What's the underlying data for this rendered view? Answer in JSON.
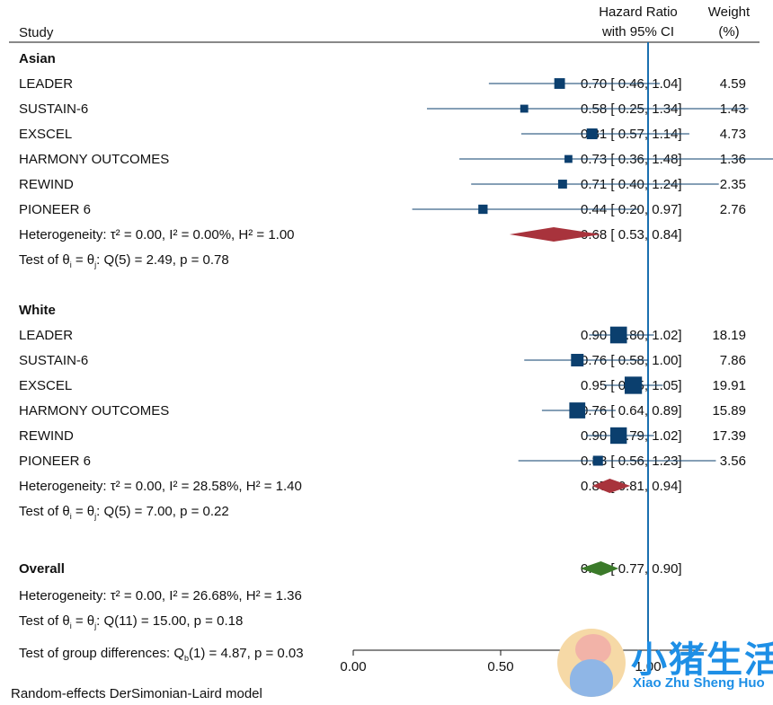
{
  "header": {
    "study": "Study",
    "hr_line1": "Hazard Ratio",
    "hr_line2": "with 95% CI",
    "weight_line1": "Weight",
    "weight_line2": "(%)"
  },
  "footer": {
    "model": "Random-effects DerSimonian-Laird model"
  },
  "watermark": {
    "title": "小猪生活",
    "subtitle": "Xiao Zhu Sheng Huo"
  },
  "colors": {
    "study_marker": "#0b3f6e",
    "subgroup_diamond": "#a8333c",
    "overall_diamond": "#3b7a2a",
    "null_line": "#1a6fb0"
  },
  "chart_data": {
    "type": "forest",
    "xlim": [
      0,
      1.2
    ],
    "xticks": [
      "0.00",
      "0.50",
      "1.00",
      "1"
    ],
    "null_value": 1.0,
    "groups": [
      {
        "name": "Asian",
        "studies": [
          {
            "name": "LEADER",
            "hr": 0.7,
            "lo": 0.46,
            "hi": 1.04,
            "ci_text": "0.70 [ 0.46,  1.04]",
            "weight": "4.59"
          },
          {
            "name": "SUSTAIN-6",
            "hr": 0.58,
            "lo": 0.25,
            "hi": 1.34,
            "ci_text": "0.58 [ 0.25,  1.34]",
            "weight": "1.43"
          },
          {
            "name": "EXSCEL",
            "hr": 0.81,
            "lo": 0.57,
            "hi": 1.14,
            "ci_text": "0.81 [ 0.57,  1.14]",
            "weight": "4.73"
          },
          {
            "name": "HARMONY OUTCOMES",
            "hr": 0.73,
            "lo": 0.36,
            "hi": 1.48,
            "ci_text": "0.73 [ 0.36,  1.48]",
            "weight": "1.36"
          },
          {
            "name": "REWIND",
            "hr": 0.71,
            "lo": 0.4,
            "hi": 1.24,
            "ci_text": "0.71 [ 0.40,  1.24]",
            "weight": "2.35"
          },
          {
            "name": "PIONEER 6",
            "hr": 0.44,
            "lo": 0.2,
            "hi": 0.97,
            "ci_text": "0.44 [ 0.20,  0.97]",
            "weight": "2.76"
          }
        ],
        "pooled": {
          "hr": 0.68,
          "lo": 0.53,
          "hi": 0.84,
          "ci_text": "0.68 [ 0.53,  0.84]"
        },
        "heterogeneity": "Heterogeneity: τ² = 0.00, I² = 0.00%, H² = 1.00",
        "test_prefix": "Test of θ",
        "test_sub1": "i",
        "test_mid": " = θ",
        "test_sub2": "j",
        "test_suffix": ": Q(5) = 2.49, p = 0.78"
      },
      {
        "name": "White",
        "studies": [
          {
            "name": "LEADER",
            "hr": 0.9,
            "lo": 0.8,
            "hi": 1.02,
            "ci_text": "0.90 [ 0.80,  1.02]",
            "weight": "18.19"
          },
          {
            "name": "SUSTAIN-6",
            "hr": 0.76,
            "lo": 0.58,
            "hi": 1.0,
            "ci_text": "0.76 [ 0.58,  1.00]",
            "weight": "7.86"
          },
          {
            "name": "EXSCEL",
            "hr": 0.95,
            "lo": 0.85,
            "hi": 1.05,
            "ci_text": "0.95 [ 0.85,  1.05]",
            "weight": "19.91"
          },
          {
            "name": "HARMONY OUTCOMES",
            "hr": 0.76,
            "lo": 0.64,
            "hi": 0.89,
            "ci_text": "0.76 [ 0.64,  0.89]",
            "weight": "15.89"
          },
          {
            "name": "REWIND",
            "hr": 0.9,
            "lo": 0.79,
            "hi": 1.02,
            "ci_text": "0.90 [ 0.79,  1.02]",
            "weight": "17.39"
          },
          {
            "name": "PIONEER 6",
            "hr": 0.83,
            "lo": 0.56,
            "hi": 1.23,
            "ci_text": "0.83 [ 0.56,  1.23]",
            "weight": "3.56"
          }
        ],
        "pooled": {
          "hr": 0.87,
          "lo": 0.81,
          "hi": 0.94,
          "ci_text": "0.87 [ 0.81,  0.94]"
        },
        "heterogeneity": "Heterogeneity: τ² = 0.00, I² = 28.58%, H² = 1.40",
        "test_prefix": "Test of θ",
        "test_sub1": "i",
        "test_mid": " = θ",
        "test_sub2": "j",
        "test_suffix": ": Q(5) = 7.00, p = 0.22"
      }
    ],
    "overall": {
      "name": "Overall",
      "hr": 0.84,
      "lo": 0.77,
      "hi": 0.9,
      "ci_text": "0.84 [ 0.77,  0.90]",
      "heterogeneity": "Heterogeneity: τ² = 0.00, I² = 26.68%, H² = 1.36",
      "test_prefix": "Test of θ",
      "test_sub1": "i",
      "test_mid": " = θ",
      "test_sub2": "j",
      "test_suffix": ": Q(11) = 15.00, p = 0.18",
      "group_test_prefix": "Test of group differences: Q",
      "group_test_sub": "b",
      "group_test_suffix": "(1) = 4.87, p = 0.03"
    }
  }
}
